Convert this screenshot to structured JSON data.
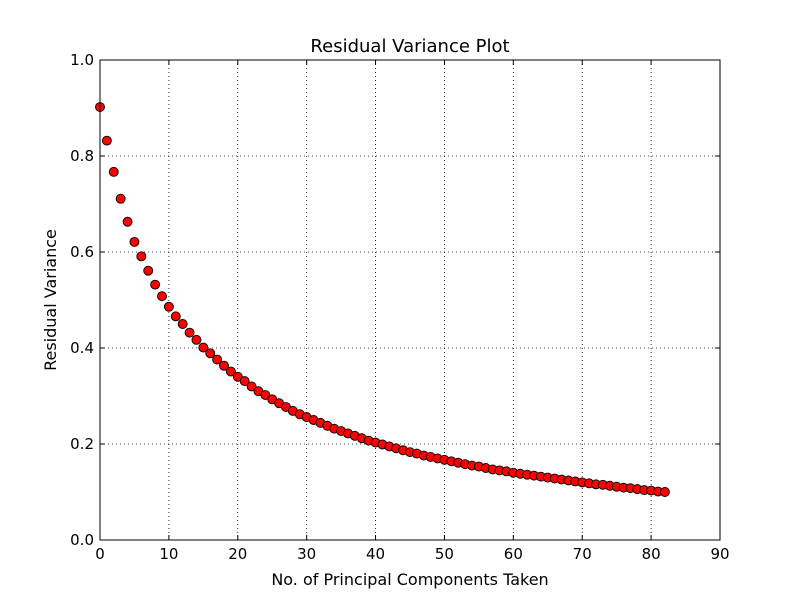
{
  "chart_data": {
    "type": "scatter",
    "title": "Residual Variance Plot",
    "xlabel": "No. of Principal Components Taken",
    "ylabel": "Residual Variance",
    "xlim": [
      0,
      90
    ],
    "ylim": [
      0.0,
      1.0
    ],
    "xticks": [
      0,
      10,
      20,
      30,
      40,
      50,
      60,
      70,
      80,
      90
    ],
    "xtick_labels": [
      "0",
      "10",
      "20",
      "30",
      "40",
      "50",
      "60",
      "70",
      "80",
      "90"
    ],
    "yticks": [
      0.0,
      0.2,
      0.4,
      0.6,
      0.8,
      1.0
    ],
    "ytick_labels": [
      "0.0",
      "0.2",
      "0.4",
      "0.6",
      "0.8",
      "1.0"
    ],
    "grid": true,
    "legend": "none",
    "marker": "circle",
    "marker_color": "#ff0000",
    "marker_edge_color": "#000000",
    "series": [
      {
        "x": [
          0,
          1,
          2,
          3,
          4,
          5,
          6,
          7,
          8,
          9,
          10,
          11,
          12,
          13,
          14,
          15,
          16,
          17,
          18,
          19,
          20,
          21,
          22,
          23,
          24,
          25,
          26,
          27,
          28,
          29,
          30,
          31,
          32,
          33,
          34,
          35,
          36,
          37,
          38,
          39,
          40,
          41,
          42,
          43,
          44,
          45,
          46,
          47,
          48,
          49,
          50,
          51,
          52,
          53,
          54,
          55,
          56,
          57,
          58,
          59,
          60,
          61,
          62,
          63,
          64,
          65,
          66,
          67,
          68,
          69,
          70,
          71,
          72,
          73,
          74,
          75,
          76,
          77,
          78,
          79,
          80,
          81,
          82
        ],
        "y": [
          0.902,
          0.832,
          0.767,
          0.711,
          0.663,
          0.621,
          0.591,
          0.561,
          0.532,
          0.508,
          0.486,
          0.466,
          0.45,
          0.432,
          0.417,
          0.401,
          0.389,
          0.376,
          0.363,
          0.351,
          0.34,
          0.331,
          0.32,
          0.31,
          0.302,
          0.293,
          0.285,
          0.277,
          0.269,
          0.262,
          0.256,
          0.25,
          0.244,
          0.238,
          0.232,
          0.227,
          0.222,
          0.217,
          0.212,
          0.207,
          0.203,
          0.199,
          0.195,
          0.191,
          0.187,
          0.183,
          0.18,
          0.176,
          0.173,
          0.17,
          0.167,
          0.164,
          0.161,
          0.158,
          0.155,
          0.153,
          0.15,
          0.147,
          0.145,
          0.143,
          0.14,
          0.138,
          0.136,
          0.134,
          0.132,
          0.13,
          0.128,
          0.126,
          0.124,
          0.122,
          0.12,
          0.118,
          0.116,
          0.115,
          0.113,
          0.111,
          0.109,
          0.108,
          0.106,
          0.104,
          0.103,
          0.101,
          0.1
        ]
      }
    ]
  }
}
